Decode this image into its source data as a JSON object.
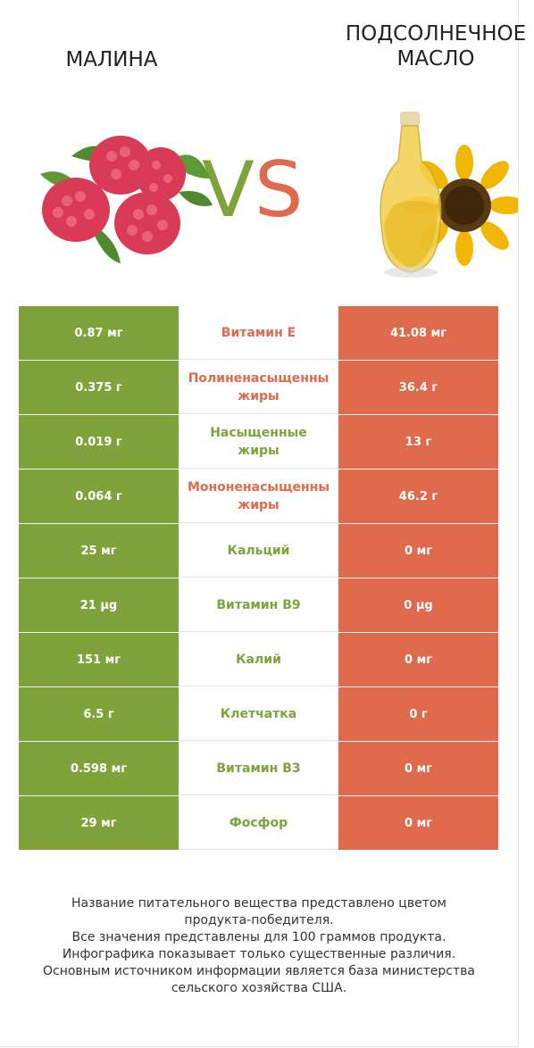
{
  "header": {
    "left_title": "МАЛИНА",
    "right_title_line1": "ПОДСОЛНЕЧНОЕ",
    "right_title_line2": "МАСЛО",
    "vs_v": "V",
    "vs_s": "S"
  },
  "colors": {
    "left": "#7ea33a",
    "right": "#e06a4c"
  },
  "rows": [
    {
      "left": "0.87 мг",
      "label1": "Витамин E",
      "label2": "",
      "right": "41.08 мг",
      "winner": "right"
    },
    {
      "left": "0.375 г",
      "label1": "Полиненасыщенны",
      "label2": "жиры",
      "right": "36.4 г",
      "winner": "right"
    },
    {
      "left": "0.019 г",
      "label1": "Насыщенные",
      "label2": "жиры",
      "right": "13 г",
      "winner": "left"
    },
    {
      "left": "0.064 г",
      "label1": "Мононенасыщенны",
      "label2": "жиры",
      "right": "46.2 г",
      "winner": "right"
    },
    {
      "left": "25 мг",
      "label1": "Кальций",
      "label2": "",
      "right": "0 мг",
      "winner": "left"
    },
    {
      "left": "21 µg",
      "label1": "Витамин B9",
      "label2": "",
      "right": "0 µg",
      "winner": "left"
    },
    {
      "left": "151 мг",
      "label1": "Калий",
      "label2": "",
      "right": "0 мг",
      "winner": "left"
    },
    {
      "left": "6.5 г",
      "label1": "Клетчатка",
      "label2": "",
      "right": "0 г",
      "winner": "left"
    },
    {
      "left": "0.598 мг",
      "label1": "Витамин B3",
      "label2": "",
      "right": "0 мг",
      "winner": "left"
    },
    {
      "left": "29 мг",
      "label1": "Фосфор",
      "label2": "",
      "right": "0 мг",
      "winner": "left"
    }
  ],
  "footer": [
    "Название питательного вещества представлено цветом",
    "продукта-победителя.",
    "Все значения представлены для 100 граммов продукта.",
    "Инфографика показывает только существенные различия.",
    "Основным источником информации является база министерства",
    "сельского хозяйства США."
  ]
}
